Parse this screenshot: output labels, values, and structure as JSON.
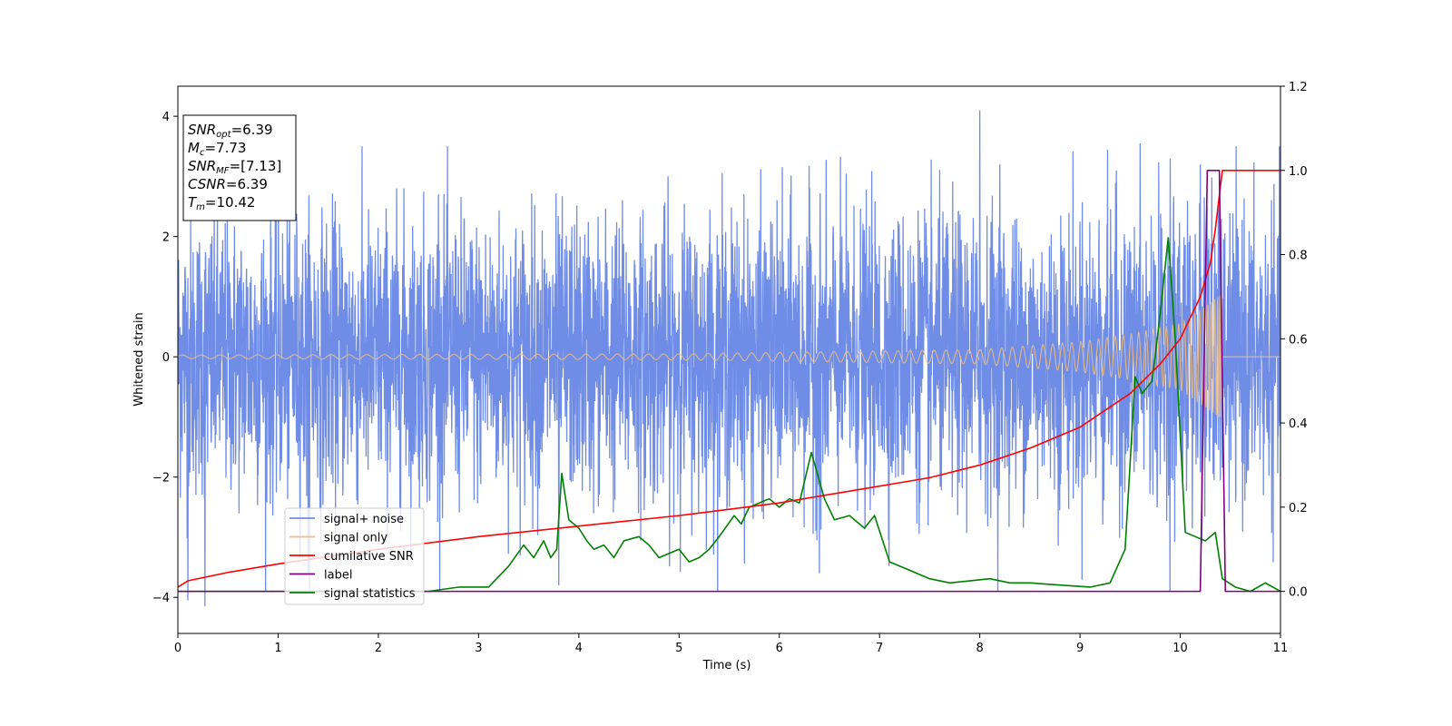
{
  "chart_data": {
    "type": "line",
    "xlabel": "Time (s)",
    "ylabel": "Whitened strain",
    "xlim": [
      0,
      11
    ],
    "ylim_left": [
      -4.6,
      4.5
    ],
    "ylim_right": [
      -0.1,
      1.2
    ],
    "x_ticks": [
      0,
      1,
      2,
      3,
      4,
      5,
      6,
      7,
      8,
      9,
      10,
      11
    ],
    "y_ticks_left": [
      -4,
      -2,
      0,
      2,
      4
    ],
    "y_ticks_right": [
      0.0,
      0.2,
      0.4,
      0.6,
      0.8,
      1.0,
      1.2
    ],
    "grid": false,
    "legend_position": "lower-left",
    "info_box": [
      {
        "main": "SNR",
        "sub": "opt",
        "value": "=6.39"
      },
      {
        "main": "M",
        "sub": "c",
        "value": "=7.73"
      },
      {
        "main": "SNR",
        "sub": "MF",
        "value": "=[7.13]"
      },
      {
        "main": "CSNR",
        "sub": "",
        "value": "=6.39"
      },
      {
        "main": "T",
        "sub": "m",
        "value": "=10.42"
      }
    ],
    "series": [
      {
        "name": "signal+ noise",
        "color": "#6f8de6",
        "axis": "left",
        "noise_amplitude": 1.15,
        "peaks": [
          [
            0.27,
            -4.15
          ],
          [
            0.1,
            -4.05
          ],
          [
            1.3,
            -3.6
          ],
          [
            2.6,
            2.7
          ],
          [
            3.8,
            -3.8
          ],
          [
            6.4,
            -3.6
          ],
          [
            8.0,
            4.1
          ],
          [
            8.2,
            3.2
          ],
          [
            9.6,
            3.55
          ],
          [
            9.9,
            3.3
          ],
          [
            10.2,
            3.2
          ],
          [
            11.0,
            3.2
          ]
        ]
      },
      {
        "name": "signal only",
        "color": "#f5be7a",
        "axis": "left",
        "merger_time": 10.42,
        "envelope": [
          [
            0,
            0.03
          ],
          [
            5,
            0.05
          ],
          [
            8,
            0.12
          ],
          [
            9,
            0.25
          ],
          [
            9.5,
            0.38
          ],
          [
            10,
            0.55
          ],
          [
            10.3,
            0.9
          ],
          [
            10.42,
            1.05
          ]
        ]
      },
      {
        "name": "cumilative SNR",
        "color": "#ff0000",
        "axis": "right",
        "x": [
          0,
          0.1,
          0.5,
          1,
          2,
          3,
          4,
          5,
          6,
          7,
          7.5,
          8,
          8.5,
          9,
          9.5,
          9.8,
          10,
          10.2,
          10.3,
          10.35,
          10.42,
          11
        ],
        "values": [
          0.01,
          0.025,
          0.045,
          0.065,
          0.1,
          0.13,
          0.155,
          0.18,
          0.21,
          0.25,
          0.27,
          0.3,
          0.34,
          0.39,
          0.47,
          0.54,
          0.6,
          0.7,
          0.78,
          0.86,
          1.0,
          1.0
        ]
      },
      {
        "name": "label",
        "color": "#800080",
        "axis": "right",
        "x": [
          0,
          10.2,
          10.27,
          10.39,
          10.45,
          11
        ],
        "values": [
          0.0,
          0.0,
          1.0,
          1.0,
          0.0,
          0.0
        ]
      },
      {
        "name": "signal statistics",
        "color": "#008000",
        "axis": "right",
        "x": [
          0,
          2.5,
          2.8,
          3.1,
          3.3,
          3.45,
          3.55,
          3.65,
          3.72,
          3.78,
          3.83,
          3.9,
          4.0,
          4.08,
          4.15,
          4.25,
          4.35,
          4.45,
          4.6,
          4.7,
          4.8,
          4.9,
          5.0,
          5.1,
          5.2,
          5.3,
          5.4,
          5.55,
          5.62,
          5.7,
          5.8,
          5.9,
          6.0,
          6.1,
          6.2,
          6.32,
          6.45,
          6.55,
          6.7,
          6.85,
          6.95,
          7.1,
          7.3,
          7.5,
          7.7,
          7.9,
          8.1,
          8.3,
          8.5,
          8.8,
          9.1,
          9.3,
          9.45,
          9.55,
          9.62,
          9.72,
          9.8,
          9.88,
          9.95,
          10.05,
          10.15,
          10.25,
          10.35,
          10.42,
          10.55,
          10.7,
          10.85,
          11.0
        ],
        "values": [
          0.0,
          0.0,
          0.01,
          0.01,
          0.06,
          0.11,
          0.08,
          0.12,
          0.08,
          0.1,
          0.28,
          0.17,
          0.15,
          0.12,
          0.1,
          0.11,
          0.08,
          0.12,
          0.13,
          0.11,
          0.08,
          0.09,
          0.1,
          0.07,
          0.08,
          0.1,
          0.13,
          0.18,
          0.16,
          0.2,
          0.21,
          0.22,
          0.2,
          0.22,
          0.21,
          0.33,
          0.22,
          0.17,
          0.18,
          0.15,
          0.18,
          0.07,
          0.05,
          0.03,
          0.02,
          0.025,
          0.03,
          0.02,
          0.02,
          0.015,
          0.01,
          0.02,
          0.1,
          0.51,
          0.47,
          0.5,
          0.66,
          0.84,
          0.6,
          0.14,
          0.13,
          0.12,
          0.14,
          0.03,
          0.01,
          0.0,
          0.02,
          0.0
        ]
      }
    ]
  }
}
